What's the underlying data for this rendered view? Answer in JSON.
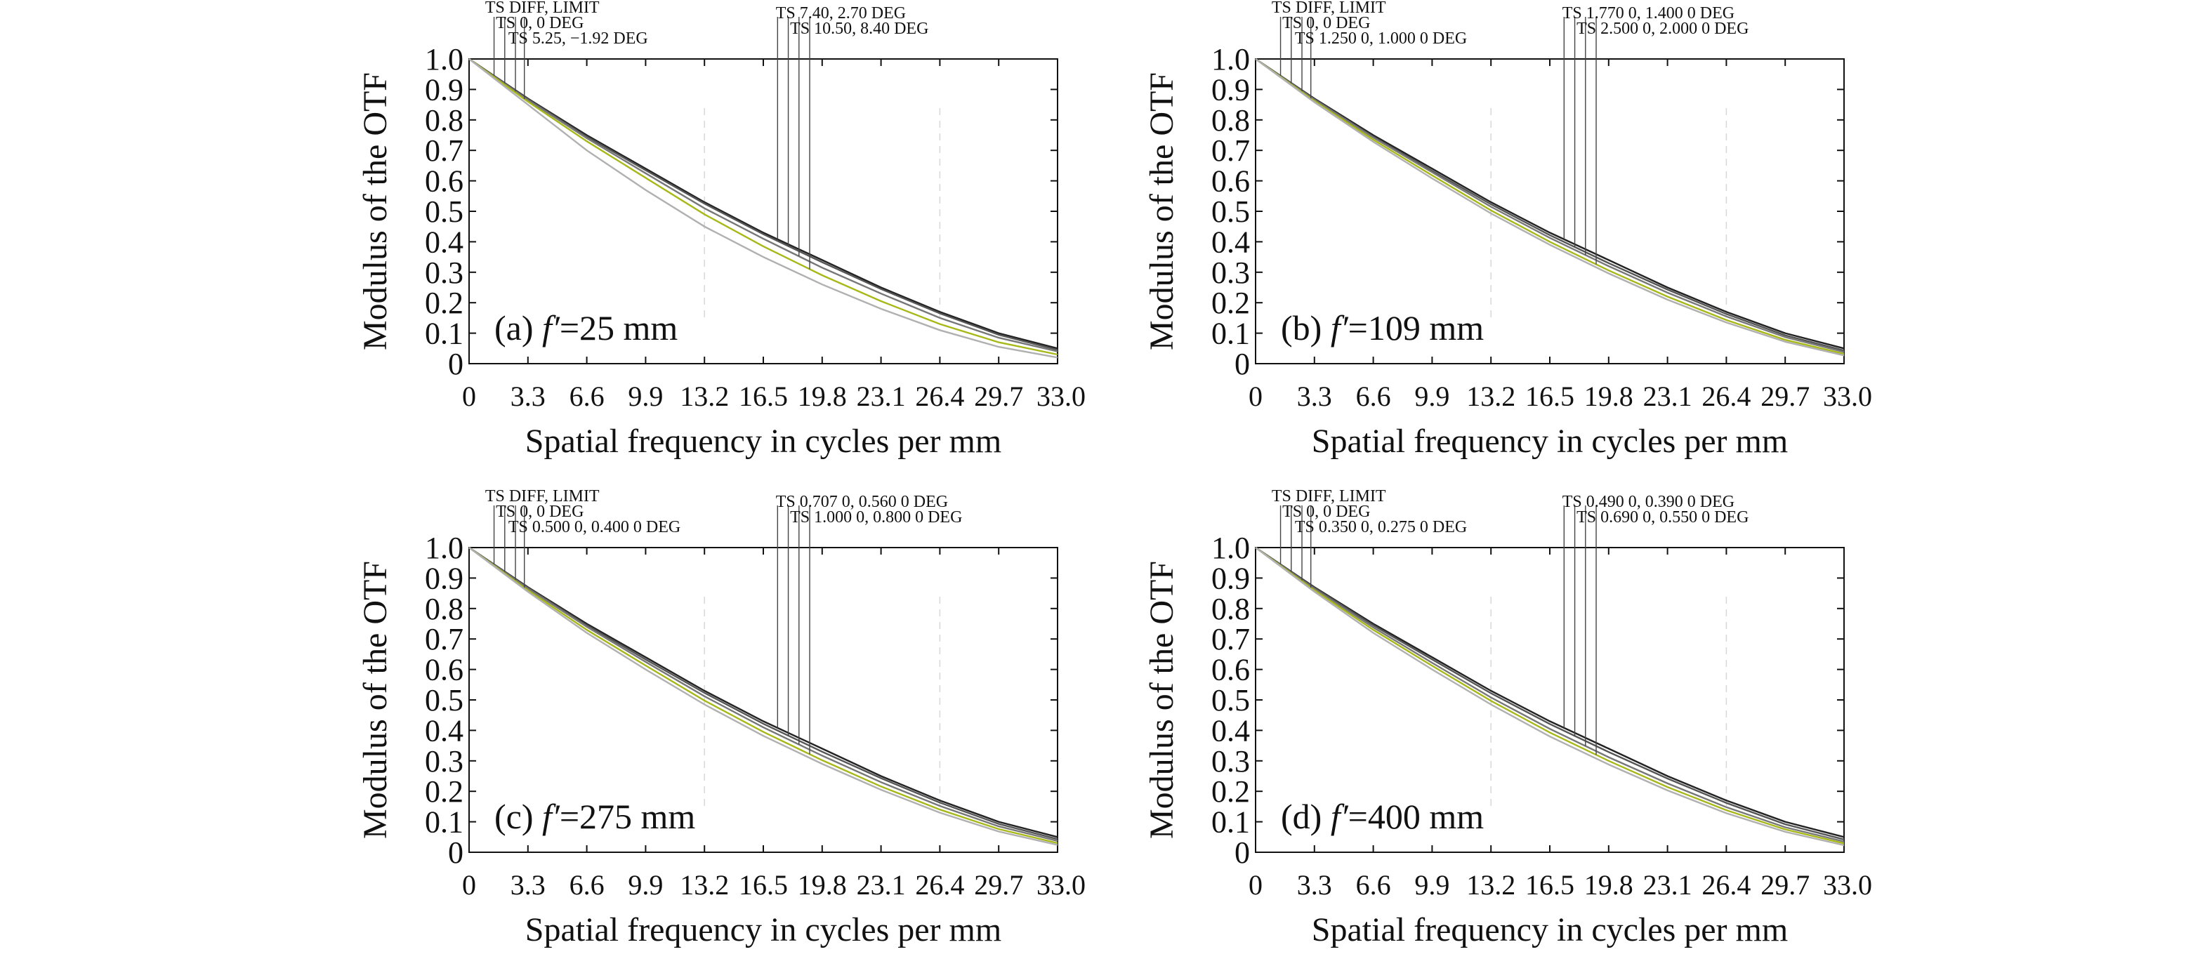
{
  "figure": {
    "panels": [
      {
        "panel_label": "(a)",
        "focal_symbol": "f′",
        "focal_value": "=25 mm",
        "legend": [
          "TS DIFF, LIMIT",
          "TS 0, 0 DEG",
          "TS 5.25, −1.92 DEG",
          "TS 7.40, 2.70 DEG",
          "TS 10.50, 8.40 DEG"
        ]
      },
      {
        "panel_label": "(b)",
        "focal_symbol": "f′",
        "focal_value": "=109 mm",
        "legend": [
          "TS DIFF, LIMIT",
          "TS 0, 0 DEG",
          "TS 1.250 0, 1.000 0 DEG",
          "TS 1.770 0, 1.400 0 DEG",
          "TS 2.500 0, 2.000 0 DEG"
        ]
      },
      {
        "panel_label": "(c)",
        "focal_symbol": "f′",
        "focal_value": "=275 mm",
        "legend": [
          "TS DIFF, LIMIT",
          "TS 0, 0 DEG",
          "TS 0.500 0, 0.400 0 DEG",
          "TS 0.707 0, 0.560 0 DEG",
          "TS 1.000 0, 0.800 0 DEG"
        ]
      },
      {
        "panel_label": "(d)",
        "focal_symbol": "f′",
        "focal_value": "=400 mm",
        "legend": [
          "TS DIFF, LIMIT",
          "TS 0, 0 DEG",
          "TS 0.350 0, 0.275 0 DEG",
          "TS 0.490 0, 0.390 0 DEG",
          "TS 0.690 0, 0.550 0 DEG"
        ]
      }
    ]
  },
  "chart_data": [
    {
      "type": "line",
      "panel_label": "(a)",
      "xlabel": "Spatial frequency in cycles per mm",
      "ylabel": "Modulus of the OTF",
      "xlim": [
        0,
        33
      ],
      "ylim": [
        0,
        1
      ],
      "x_ticks": [
        "0",
        "3.3",
        "6.6",
        "9.9",
        "13.2",
        "16.5",
        "19.8",
        "23.1",
        "26.4",
        "29.7",
        "33.0"
      ],
      "y_ticks": [
        "0",
        "0.1",
        "0.2",
        "0.3",
        "0.4",
        "0.5",
        "0.6",
        "0.7",
        "0.8",
        "0.9",
        "1.0"
      ],
      "grid": false,
      "x": [
        0,
        3.3,
        6.6,
        9.9,
        13.2,
        16.5,
        19.8,
        23.1,
        26.4,
        29.7,
        33.0
      ],
      "series": [
        {
          "name": "TS DIFF, LIMIT",
          "values": [
            1.0,
            0.87,
            0.75,
            0.64,
            0.53,
            0.43,
            0.34,
            0.25,
            0.17,
            0.1,
            0.05
          ],
          "color": "#222222"
        },
        {
          "name": "TS 0, 0 DEG",
          "values": [
            1.0,
            0.868,
            0.745,
            0.635,
            0.525,
            0.425,
            0.333,
            0.245,
            0.165,
            0.095,
            0.045
          ],
          "color": "#555555"
        },
        {
          "name": "TS 5.25, −1.92 DEG",
          "values": [
            1.0,
            0.865,
            0.74,
            0.625,
            0.51,
            0.41,
            0.315,
            0.23,
            0.15,
            0.085,
            0.04
          ],
          "color": "#777777"
        },
        {
          "name": "TS 7.40, 2.70 DEG",
          "values": [
            1.0,
            0.86,
            0.73,
            0.61,
            0.49,
            0.385,
            0.29,
            0.205,
            0.13,
            0.07,
            0.03
          ],
          "color": "#a8b818"
        },
        {
          "name": "TS 10.50, 8.40 DEG",
          "values": [
            1.0,
            0.85,
            0.7,
            0.57,
            0.45,
            0.35,
            0.26,
            0.18,
            0.11,
            0.055,
            0.02
          ],
          "color": "#b0b0b0"
        }
      ]
    },
    {
      "type": "line",
      "panel_label": "(b)",
      "xlabel": "Spatial frequency in cycles per mm",
      "ylabel": "Modulus of the OTF",
      "xlim": [
        0,
        33
      ],
      "ylim": [
        0,
        1
      ],
      "x_ticks": [
        "0",
        "3.3",
        "6.6",
        "9.9",
        "13.2",
        "16.5",
        "19.8",
        "23.1",
        "26.4",
        "29.7",
        "33.0"
      ],
      "y_ticks": [
        "0",
        "0.1",
        "0.2",
        "0.3",
        "0.4",
        "0.5",
        "0.6",
        "0.7",
        "0.8",
        "0.9",
        "1.0"
      ],
      "grid": false,
      "x": [
        0,
        3.3,
        6.6,
        9.9,
        13.2,
        16.5,
        19.8,
        23.1,
        26.4,
        29.7,
        33.0
      ],
      "series": [
        {
          "name": "TS DIFF, LIMIT",
          "values": [
            1.0,
            0.87,
            0.75,
            0.64,
            0.53,
            0.43,
            0.34,
            0.25,
            0.17,
            0.1,
            0.05
          ],
          "color": "#222222"
        },
        {
          "name": "TS 0, 0 DEG",
          "values": [
            1.0,
            0.868,
            0.745,
            0.633,
            0.523,
            0.422,
            0.33,
            0.243,
            0.163,
            0.093,
            0.043
          ],
          "color": "#555555"
        },
        {
          "name": "TS 1.250 0, 1.000 0 DEG",
          "values": [
            1.0,
            0.866,
            0.742,
            0.628,
            0.515,
            0.413,
            0.32,
            0.233,
            0.155,
            0.087,
            0.038
          ],
          "color": "#777777"
        },
        {
          "name": "TS 1.770 0, 1.400 0 DEG",
          "values": [
            1.0,
            0.862,
            0.735,
            0.618,
            0.503,
            0.4,
            0.306,
            0.22,
            0.143,
            0.078,
            0.032
          ],
          "color": "#a8b818"
        },
        {
          "name": "TS 2.500 0, 2.000 0 DEG",
          "values": [
            1.0,
            0.858,
            0.728,
            0.608,
            0.493,
            0.39,
            0.296,
            0.21,
            0.135,
            0.072,
            0.027
          ],
          "color": "#b0b0b0"
        }
      ]
    },
    {
      "type": "line",
      "panel_label": "(c)",
      "xlabel": "Spatial frequency in cycles per mm",
      "ylabel": "Modulus of the OTF",
      "xlim": [
        0,
        33
      ],
      "ylim": [
        0,
        1
      ],
      "x_ticks": [
        "0",
        "3.3",
        "6.6",
        "9.9",
        "13.2",
        "16.5",
        "19.8",
        "23.1",
        "26.4",
        "29.7",
        "33.0"
      ],
      "y_ticks": [
        "0",
        "0.1",
        "0.2",
        "0.3",
        "0.4",
        "0.5",
        "0.6",
        "0.7",
        "0.8",
        "0.9",
        "1.0"
      ],
      "grid": false,
      "x": [
        0,
        3.3,
        6.6,
        9.9,
        13.2,
        16.5,
        19.8,
        23.1,
        26.4,
        29.7,
        33.0
      ],
      "series": [
        {
          "name": "TS DIFF, LIMIT",
          "values": [
            1.0,
            0.87,
            0.75,
            0.64,
            0.53,
            0.43,
            0.34,
            0.25,
            0.17,
            0.1,
            0.05
          ],
          "color": "#222222"
        },
        {
          "name": "TS 0, 0 DEG",
          "values": [
            1.0,
            0.868,
            0.745,
            0.633,
            0.523,
            0.422,
            0.33,
            0.243,
            0.163,
            0.093,
            0.043
          ],
          "color": "#555555"
        },
        {
          "name": "TS 0.500 0, 0.400 0 DEG",
          "values": [
            1.0,
            0.865,
            0.74,
            0.625,
            0.512,
            0.41,
            0.317,
            0.23,
            0.152,
            0.085,
            0.037
          ],
          "color": "#777777"
        },
        {
          "name": "TS 0.707 0, 0.560 0 DEG",
          "values": [
            1.0,
            0.86,
            0.73,
            0.613,
            0.498,
            0.395,
            0.302,
            0.216,
            0.14,
            0.076,
            0.03
          ],
          "color": "#a8b818"
        },
        {
          "name": "TS 1.000 0, 0.800 0 DEG",
          "values": [
            1.0,
            0.855,
            0.72,
            0.6,
            0.485,
            0.382,
            0.29,
            0.205,
            0.13,
            0.068,
            0.024
          ],
          "color": "#b0b0b0"
        }
      ]
    },
    {
      "type": "line",
      "panel_label": "(d)",
      "xlabel": "Spatial frequency in cycles per mm",
      "ylabel": "Modulus of the OTF",
      "xlim": [
        0,
        33
      ],
      "ylim": [
        0,
        1
      ],
      "x_ticks": [
        "0",
        "3.3",
        "6.6",
        "9.9",
        "13.2",
        "16.5",
        "19.8",
        "23.1",
        "26.4",
        "29.7",
        "33.0"
      ],
      "y_ticks": [
        "0",
        "0.1",
        "0.2",
        "0.3",
        "0.4",
        "0.5",
        "0.6",
        "0.7",
        "0.8",
        "0.9",
        "1.0"
      ],
      "grid": false,
      "x": [
        0,
        3.3,
        6.6,
        9.9,
        13.2,
        16.5,
        19.8,
        23.1,
        26.4,
        29.7,
        33.0
      ],
      "series": [
        {
          "name": "TS DIFF, LIMIT",
          "values": [
            1.0,
            0.87,
            0.75,
            0.64,
            0.53,
            0.43,
            0.34,
            0.25,
            0.17,
            0.1,
            0.05
          ],
          "color": "#222222"
        },
        {
          "name": "TS 0, 0 DEG",
          "values": [
            1.0,
            0.868,
            0.745,
            0.633,
            0.522,
            0.421,
            0.329,
            0.242,
            0.162,
            0.092,
            0.042
          ],
          "color": "#555555"
        },
        {
          "name": "TS 0.350 0, 0.275 0 DEG",
          "values": [
            1.0,
            0.864,
            0.738,
            0.622,
            0.508,
            0.405,
            0.312,
            0.226,
            0.148,
            0.082,
            0.035
          ],
          "color": "#777777"
        },
        {
          "name": "TS 0.490 0, 0.390 0 DEG",
          "values": [
            1.0,
            0.86,
            0.73,
            0.612,
            0.497,
            0.393,
            0.3,
            0.214,
            0.138,
            0.075,
            0.029
          ],
          "color": "#a8b818"
        },
        {
          "name": "TS 0.690 0, 0.550 0 DEG",
          "values": [
            1.0,
            0.855,
            0.72,
            0.6,
            0.485,
            0.38,
            0.288,
            0.203,
            0.128,
            0.067,
            0.023
          ],
          "color": "#b0b0b0"
        }
      ]
    }
  ]
}
